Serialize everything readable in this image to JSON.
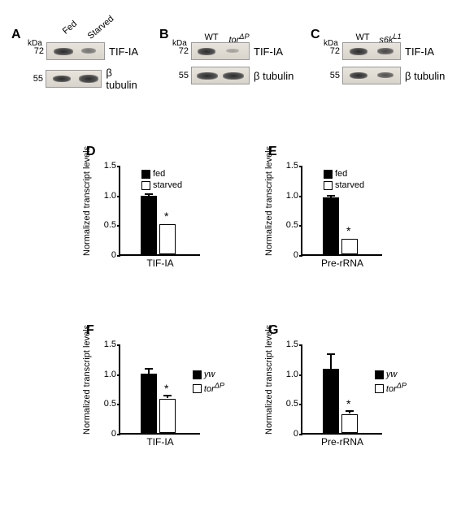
{
  "panels": {
    "A": {
      "label": "A",
      "lanes": [
        "Fed",
        "Starved"
      ],
      "mw": [
        "72",
        "55"
      ],
      "antibodies": [
        "TIF-IA",
        "β tubulin"
      ],
      "kda": "kDa"
    },
    "B": {
      "label": "B",
      "lanes": [
        "WT",
        "tor<sup>ΔP</sup>"
      ],
      "mw": [
        "72",
        "55"
      ],
      "antibodies": [
        "TIF-IA",
        "β tubulin"
      ],
      "kda": "kDa"
    },
    "C": {
      "label": "C",
      "lanes": [
        "WT",
        "s6k<sup>L1</sup>"
      ],
      "mw": [
        "72",
        "55"
      ],
      "antibodies": [
        "TIF-IA",
        "β tubulin"
      ],
      "kda": "kDa"
    },
    "D": {
      "label": "D",
      "ylabel": "Normalized transcript  levels",
      "yticks": [
        "0",
        "0.5",
        "1.0",
        "1.5"
      ],
      "xlabel": "TIF-IA",
      "bar1": 0.98,
      "bar2": 0.5,
      "err1": 0.03,
      "err2": 0.0,
      "legend": [
        "fed",
        "starved"
      ]
    },
    "E": {
      "label": "E",
      "ylabel": "Normalized transcript  levels",
      "yticks": [
        "0",
        "0.5",
        "1.0",
        "1.5"
      ],
      "xlabel": "Pre-rRNA",
      "bar1": 0.96,
      "bar2": 0.26,
      "err1": 0.02,
      "err2": 0.0,
      "legend": [
        "fed",
        "starved"
      ]
    },
    "F": {
      "label": "F",
      "ylabel": "Normalized transcript levels",
      "yticks": [
        "0",
        "0.5",
        "1.0",
        "1.5"
      ],
      "xlabel": "TIF-IA",
      "bar1": 1.0,
      "bar2": 0.57,
      "err1": 0.08,
      "err2": 0.04,
      "legend": [
        "yw",
        "tor<sup>ΔP</sup>"
      ],
      "italic": true
    },
    "G": {
      "label": "G",
      "ylabel": "Normalized transcript levels",
      "yticks": [
        "0",
        "0.5",
        "1.0",
        "1.5"
      ],
      "xlabel": "Pre-rRNA",
      "bar1": 1.08,
      "bar2": 0.31,
      "err1": 0.24,
      "err2": 0.04,
      "legend": [
        "yw",
        "tor<sup>ΔP</sup>"
      ],
      "italic": true
    }
  },
  "colors": {
    "black": "#000000",
    "white": "#ffffff",
    "blot_bg": "#ddd8ce"
  }
}
